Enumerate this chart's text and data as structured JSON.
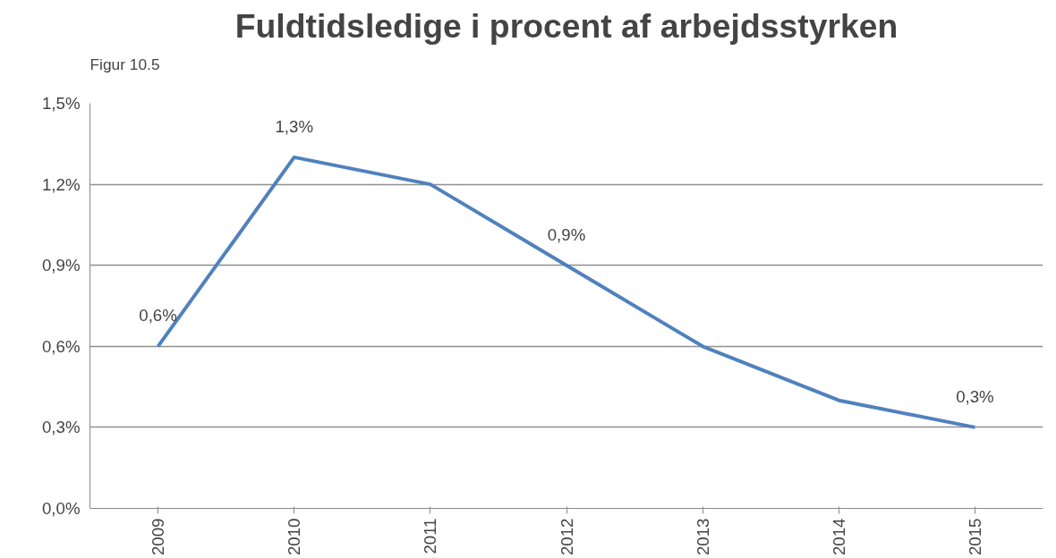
{
  "chart_data": {
    "type": "line",
    "title": "Fuldtidsledige i procent af arbejdsstyrken",
    "annotations": [
      "Figur 10.5"
    ],
    "categories": [
      "2009",
      "2010",
      "2011",
      "2012",
      "2013",
      "2014",
      "2015"
    ],
    "series": [
      {
        "color": "#4f81bd",
        "values": [
          0.6,
          1.3,
          1.2,
          0.9,
          0.6,
          0.4,
          0.3
        ],
        "value_labels": [
          "0,6%",
          "1,3%",
          null,
          "0,9%",
          null,
          null,
          "0,3%"
        ]
      }
    ],
    "ylim": [
      0,
      1.5
    ],
    "yticks": [
      {
        "value": 0,
        "label": "0,0%"
      },
      {
        "value": 0.3,
        "label": "0,3%"
      },
      {
        "value": 0.6,
        "label": "0,6%"
      },
      {
        "value": 0.9,
        "label": "0,9%"
      },
      {
        "value": 1.2,
        "label": "1,2%"
      },
      {
        "value": 1.5,
        "label": "1,5%"
      }
    ],
    "grid": "y",
    "marker": "none",
    "line_style": "solid"
  }
}
